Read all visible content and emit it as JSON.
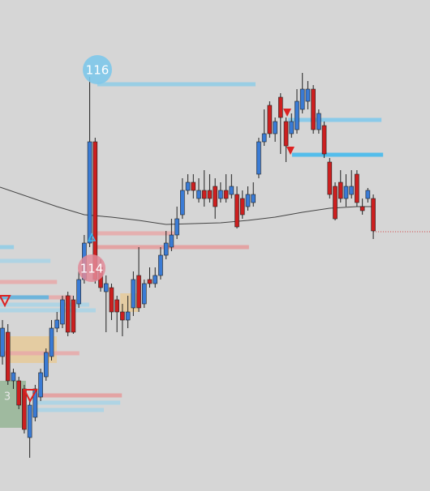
{
  "chart_data": {
    "type": "candlestick",
    "up_color": "#3a7bd5",
    "down_color": "#cc1f1f",
    "ylim": [
      0,
      606
    ],
    "xlim": [
      -0.45,
      78.4
    ],
    "ohlc": [
      [
        166,
        211,
        156,
        201
      ],
      [
        196,
        206,
        131,
        136
      ],
      [
        136,
        151,
        126,
        146
      ],
      [
        136,
        141,
        101,
        106
      ],
      [
        126,
        131,
        71,
        76
      ],
      [
        66,
        111,
        41,
        106
      ],
      [
        91,
        131,
        86,
        126
      ],
      [
        116,
        151,
        111,
        146
      ],
      [
        141,
        176,
        136,
        171
      ],
      [
        166,
        211,
        161,
        201
      ],
      [
        201,
        221,
        196,
        211
      ],
      [
        206,
        241,
        201,
        236
      ],
      [
        241,
        246,
        191,
        196
      ],
      [
        236,
        241,
        194,
        196
      ],
      [
        231,
        271,
        226,
        261
      ],
      [
        261,
        316,
        256,
        306
      ],
      [
        306,
        511,
        301,
        431
      ],
      [
        431,
        436,
        256,
        261
      ],
      [
        276,
        286,
        246,
        251
      ],
      [
        246,
        266,
        196,
        256
      ],
      [
        251,
        256,
        211,
        221
      ],
      [
        236,
        241,
        196,
        221
      ],
      [
        221,
        231,
        191,
        211
      ],
      [
        211,
        241,
        201,
        221
      ],
      [
        226,
        271,
        216,
        261
      ],
      [
        266,
        301,
        221,
        226
      ],
      [
        231,
        261,
        226,
        256
      ],
      [
        261,
        276,
        251,
        256
      ],
      [
        256,
        276,
        251,
        266
      ],
      [
        266,
        301,
        261,
        291
      ],
      [
        291,
        321,
        286,
        306
      ],
      [
        301,
        336,
        296,
        316
      ],
      [
        316,
        351,
        311,
        336
      ],
      [
        341,
        386,
        336,
        371
      ],
      [
        371,
        391,
        366,
        381
      ],
      [
        381,
        391,
        361,
        371
      ],
      [
        361,
        386,
        356,
        371
      ],
      [
        371,
        396,
        351,
        361
      ],
      [
        371,
        391,
        356,
        361
      ],
      [
        376,
        386,
        336,
        351
      ],
      [
        361,
        381,
        356,
        371
      ],
      [
        371,
        391,
        356,
        361
      ],
      [
        366,
        391,
        361,
        376
      ],
      [
        366,
        376,
        324,
        326
      ],
      [
        361,
        371,
        336,
        341
      ],
      [
        351,
        376,
        346,
        366
      ],
      [
        356,
        381,
        351,
        366
      ],
      [
        391,
        436,
        386,
        431
      ],
      [
        431,
        471,
        426,
        441
      ],
      [
        476,
        481,
        436,
        441
      ],
      [
        441,
        461,
        431,
        456
      ],
      [
        486,
        491,
        416,
        461
      ],
      [
        456,
        461,
        406,
        426
      ],
      [
        441,
        466,
        436,
        456
      ],
      [
        446,
        496,
        441,
        481
      ],
      [
        471,
        516,
        466,
        496
      ],
      [
        481,
        506,
        471,
        496
      ],
      [
        496,
        501,
        441,
        446
      ],
      [
        446,
        471,
        441,
        466
      ],
      [
        451,
        456,
        411,
        416
      ],
      [
        406,
        411,
        361,
        366
      ],
      [
        376,
        381,
        334,
        336
      ],
      [
        381,
        396,
        356,
        361
      ],
      [
        361,
        391,
        351,
        376
      ],
      [
        366,
        396,
        361,
        376
      ],
      [
        391,
        396,
        351,
        356
      ],
      [
        351,
        361,
        341,
        346
      ],
      [
        361,
        374,
        356,
        371
      ],
      [
        361,
        366,
        311,
        321
      ]
    ],
    "ma": {
      "color": "#444444",
      "x": [
        -0.45,
        10,
        15,
        20,
        25,
        30,
        35,
        40,
        45,
        50,
        55,
        60,
        65,
        68
      ],
      "values": [
        375,
        351,
        341,
        338,
        334,
        329,
        330,
        331,
        334,
        338,
        344,
        349,
        351,
        351
      ]
    },
    "levels": [
      {
        "value": 502,
        "from": 17.4,
        "to": 46.4,
        "color": "#8ecde6"
      },
      {
        "value": 458,
        "from": 52.4,
        "to": 69.5,
        "color": "#7cc8ec"
      },
      {
        "value": 415,
        "from": 53.1,
        "to": 69.8,
        "color": "#3db8ee"
      },
      {
        "value": 318,
        "from": 16.7,
        "to": 31.5,
        "color": "#e8a8a8"
      },
      {
        "value": 301,
        "from": 17.4,
        "to": 45.2,
        "color": "#e59a9a"
      },
      {
        "value": 301,
        "from": -0.45,
        "to": 2.1,
        "color": "#8ecde6"
      },
      {
        "value": 284,
        "from": -0.45,
        "to": 8.8,
        "color": "#a8d4e6"
      },
      {
        "value": 258,
        "from": -0.45,
        "to": 10,
        "color": "#e8a8a8"
      },
      {
        "value": 239,
        "from": -0.45,
        "to": 8.5,
        "color": "#5aaedc"
      },
      {
        "value": 239,
        "from": 8.5,
        "to": 12.9,
        "color": "#e8a8a8"
      },
      {
        "value": 230,
        "from": -0.45,
        "to": 15.9,
        "color": "#a8d4e6"
      },
      {
        "value": 223,
        "from": -0.45,
        "to": 17.1,
        "color": "#a8d4e6"
      },
      {
        "value": 170,
        "from": -0.45,
        "to": 14.1,
        "color": "#e8a8a8"
      },
      {
        "value": 118,
        "from": 5.5,
        "to": 21.9,
        "color": "#e59a9a"
      },
      {
        "value": 109,
        "from": 6.2,
        "to": 21.6,
        "color": "#a8d4e6"
      },
      {
        "value": 100,
        "from": 5.5,
        "to": 18.6,
        "color": "#a8d4e6"
      }
    ],
    "last_price": {
      "value": 320,
      "from": 68,
      "to": 78.4,
      "color": "#d04040"
    },
    "zones": [
      {
        "top": 191,
        "bottom": 158,
        "from": 1.0,
        "to": 9.97,
        "color": "#e8c890"
      },
      {
        "top": 136,
        "bottom": 78,
        "from": -0.45,
        "to": 4.3,
        "color": "#8cb08c"
      },
      {
        "top": 244,
        "bottom": 221,
        "from": 21.6,
        "to": 24.9,
        "color": "#e8c890"
      }
    ],
    "markers": [
      {
        "label": "116",
        "color": "#7ec8ea"
      },
      {
        "label": "114",
        "color": "#e28a98"
      },
      {
        "label": "3"
      }
    ]
  }
}
